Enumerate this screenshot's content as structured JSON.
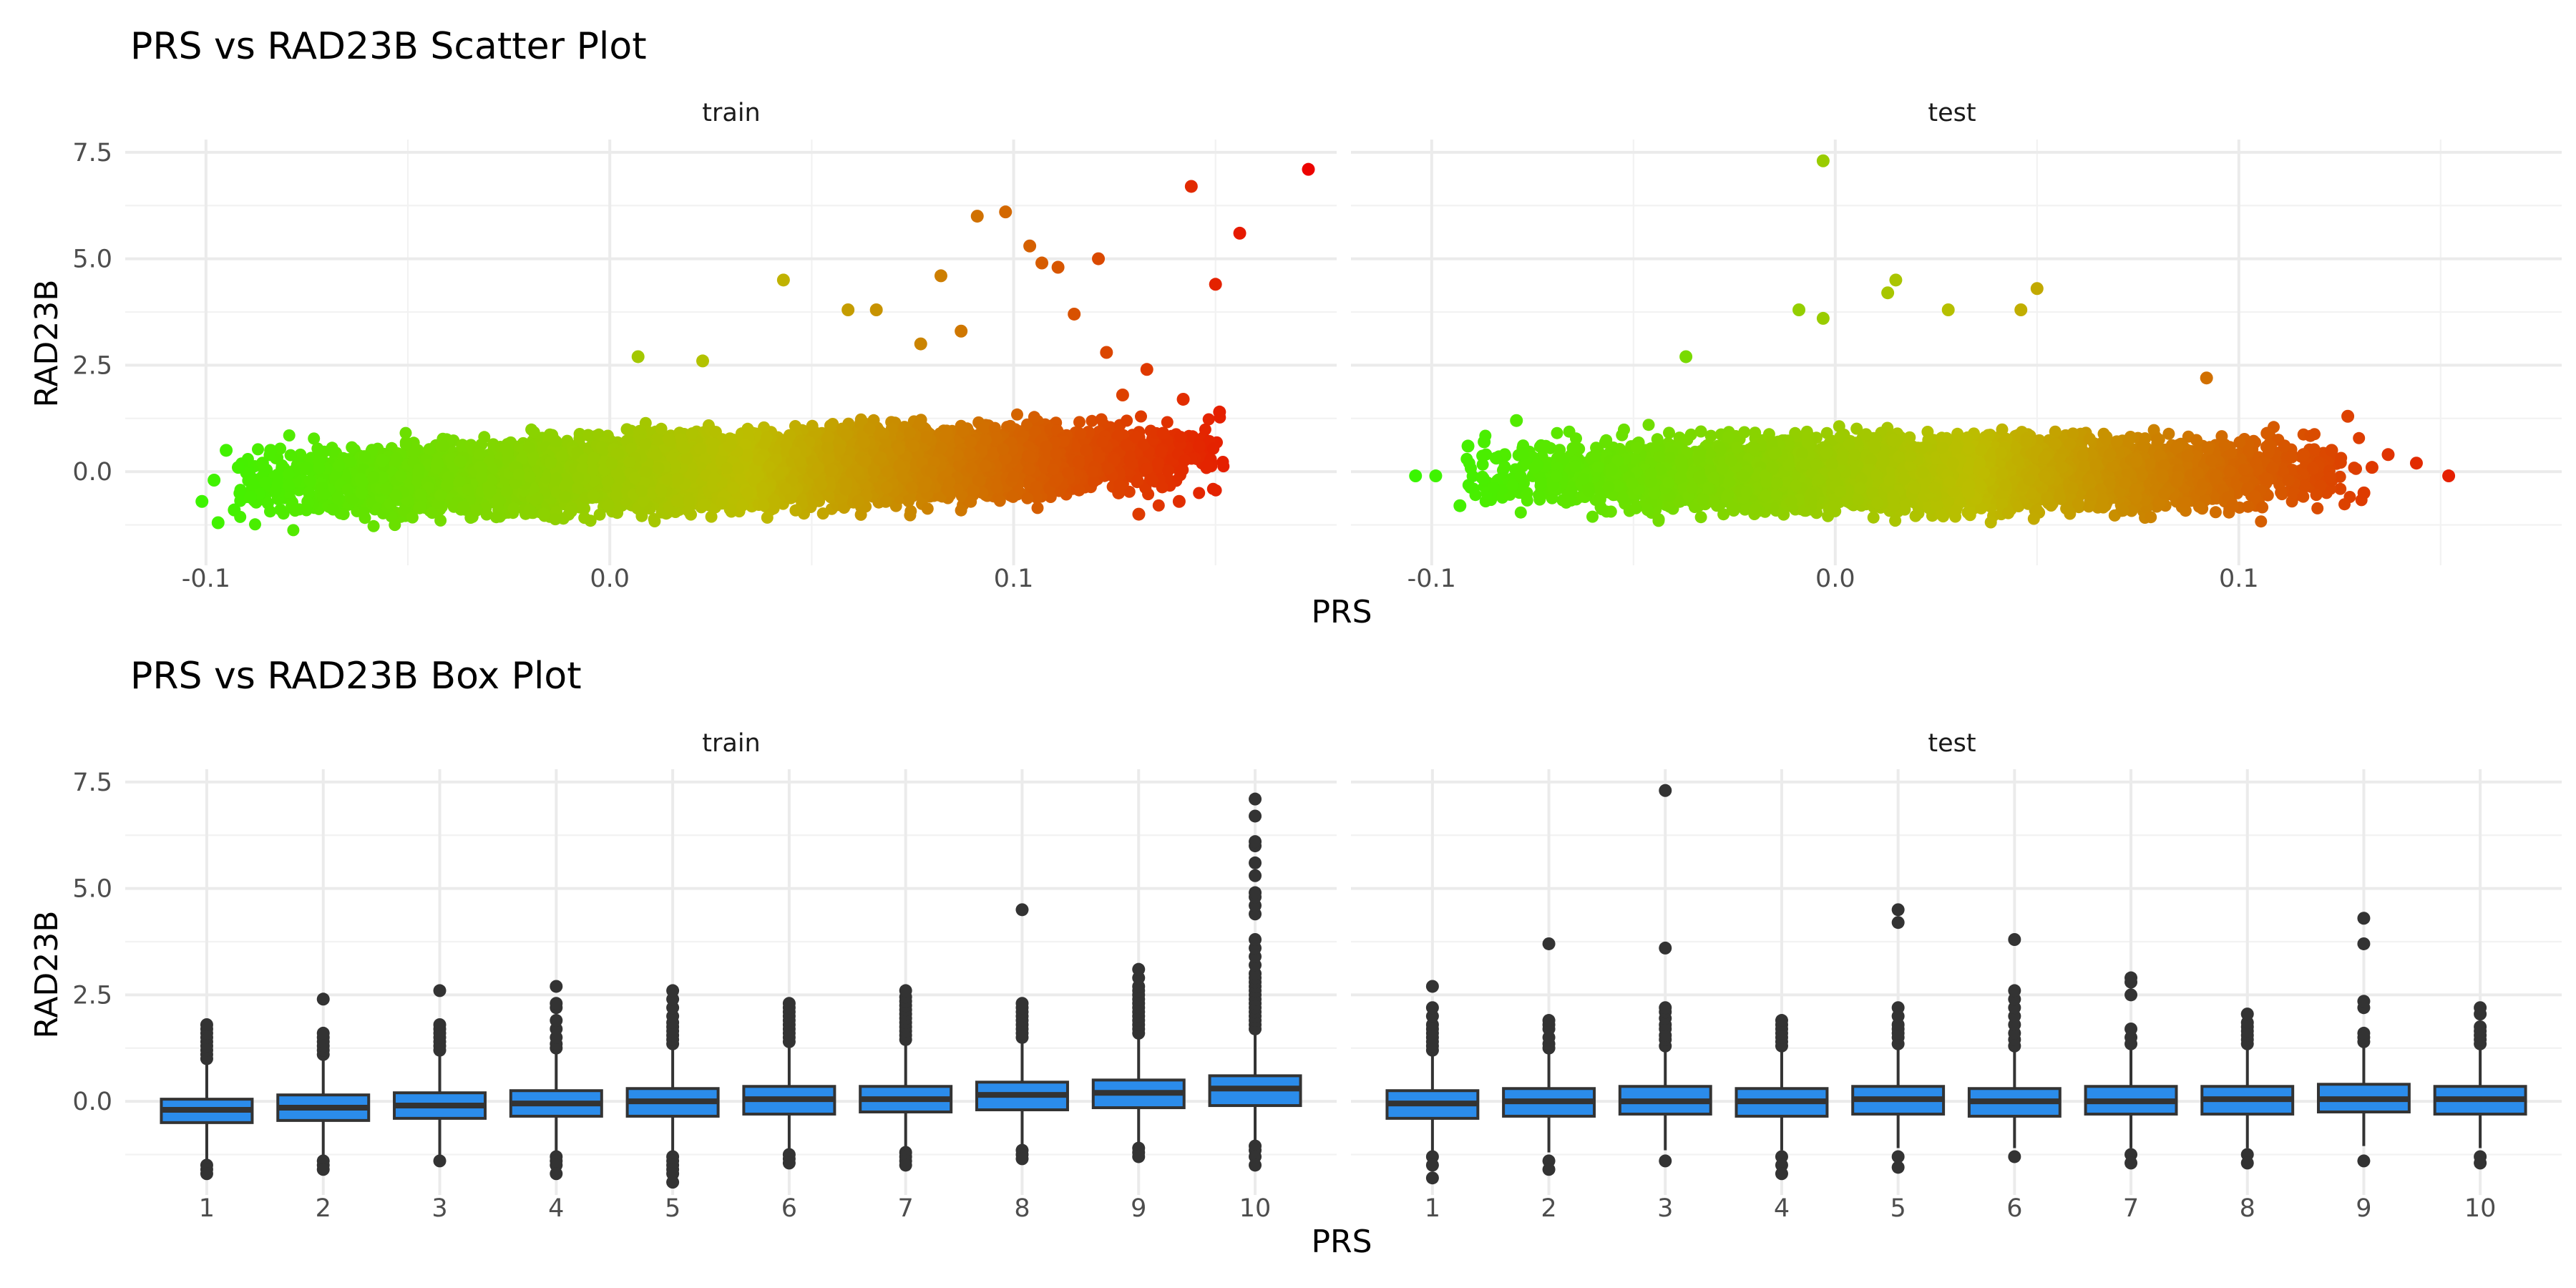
{
  "colors": {
    "gradient_low": "#39F500",
    "gradient_mid": "#BDBD00",
    "gradient_high": "#ED0000",
    "box_fill": "#2B8CEB",
    "box_line": "#333333",
    "outlier": "#333333",
    "grid": "#EBEBEB"
  },
  "chart_data": [
    {
      "type": "scatter",
      "title": "PRS vs RAD23B Scatter Plot",
      "xlabel": "PRS",
      "ylabel": "RAD23B",
      "xlim": [
        -0.12,
        0.18
      ],
      "ylim": [
        -2.2,
        7.8
      ],
      "x_ticks": [
        -0.1,
        0.0,
        0.1
      ],
      "x_tick_labels": [
        "-0.1",
        "0.0",
        "0.1"
      ],
      "y_ticks": [
        0.0,
        2.5,
        5.0,
        7.5
      ],
      "y_tick_labels": [
        "0.0",
        "2.5",
        "5.0",
        "7.5"
      ],
      "grid": true,
      "color_encoding": "continuous gradient by PRS: green (low) to red (high)",
      "panels": [
        {
          "label": "train",
          "approx_points": 9000,
          "bulk_prs_range": [
            -0.08,
            0.14
          ],
          "points": [
            {
              "x": -0.101,
              "y": -0.7
            },
            {
              "x": -0.098,
              "y": -0.2
            },
            {
              "x": -0.097,
              "y": -1.2
            },
            {
              "x": -0.095,
              "y": 0.5
            },
            {
              "x": -0.093,
              "y": -0.9
            },
            {
              "x": -0.092,
              "y": 0.1
            },
            {
              "x": -0.089,
              "y": -0.6
            },
            {
              "x": -0.086,
              "y": 0.2
            },
            {
              "x": -0.084,
              "y": 0.5
            },
            {
              "x": 0.007,
              "y": 2.7
            },
            {
              "x": 0.023,
              "y": 2.6
            },
            {
              "x": 0.043,
              "y": 4.5
            },
            {
              "x": 0.059,
              "y": 3.8
            },
            {
              "x": 0.066,
              "y": 3.8
            },
            {
              "x": 0.077,
              "y": 3.0
            },
            {
              "x": 0.082,
              "y": 4.6
            },
            {
              "x": 0.087,
              "y": 3.3
            },
            {
              "x": 0.091,
              "y": 6.0
            },
            {
              "x": 0.098,
              "y": 6.1
            },
            {
              "x": 0.104,
              "y": 5.3
            },
            {
              "x": 0.107,
              "y": 4.9
            },
            {
              "x": 0.111,
              "y": 4.8
            },
            {
              "x": 0.115,
              "y": 3.7
            },
            {
              "x": 0.121,
              "y": 5.0
            },
            {
              "x": 0.123,
              "y": 2.8
            },
            {
              "x": 0.127,
              "y": 1.8
            },
            {
              "x": 0.133,
              "y": 2.4
            },
            {
              "x": 0.137,
              "y": 0.9
            },
            {
              "x": 0.142,
              "y": 1.7
            },
            {
              "x": 0.144,
              "y": 6.7
            },
            {
              "x": 0.146,
              "y": 0.6
            },
            {
              "x": 0.151,
              "y": 1.4
            },
            {
              "x": 0.15,
              "y": 4.4
            },
            {
              "x": 0.156,
              "y": 5.6
            },
            {
              "x": 0.173,
              "y": 7.1
            },
            {
              "x": 0.131,
              "y": -1.0
            },
            {
              "x": 0.141,
              "y": -0.7
            },
            {
              "x": 0.126,
              "y": -0.5
            }
          ]
        },
        {
          "label": "test",
          "approx_points": 6000,
          "bulk_prs_range": [
            -0.08,
            0.12
          ],
          "points": [
            {
              "x": -0.104,
              "y": -0.1
            },
            {
              "x": -0.099,
              "y": -0.1
            },
            {
              "x": -0.093,
              "y": -0.8
            },
            {
              "x": -0.091,
              "y": 0.6
            },
            {
              "x": -0.087,
              "y": 0.7
            },
            {
              "x": -0.079,
              "y": 1.2
            },
            {
              "x": -0.037,
              "y": 2.7
            },
            {
              "x": -0.003,
              "y": 7.3
            },
            {
              "x": -0.009,
              "y": 3.8
            },
            {
              "x": -0.003,
              "y": 3.6
            },
            {
              "x": 0.013,
              "y": 4.2
            },
            {
              "x": 0.015,
              "y": 4.5
            },
            {
              "x": 0.028,
              "y": 3.8
            },
            {
              "x": 0.046,
              "y": 3.8
            },
            {
              "x": 0.05,
              "y": 4.3
            },
            {
              "x": 0.092,
              "y": 2.2
            },
            {
              "x": 0.107,
              "y": 0.9
            },
            {
              "x": 0.116,
              "y": 0.4
            },
            {
              "x": 0.123,
              "y": 0.5
            },
            {
              "x": 0.127,
              "y": 1.3
            },
            {
              "x": 0.131,
              "y": -0.5
            },
            {
              "x": 0.133,
              "y": 0.1
            },
            {
              "x": 0.137,
              "y": 0.4
            },
            {
              "x": 0.144,
              "y": 0.2
            },
            {
              "x": 0.152,
              "y": -0.1
            }
          ]
        }
      ]
    },
    {
      "type": "box",
      "title": "PRS vs RAD23B Box Plot",
      "xlabel": "PRS",
      "ylabel": "RAD23B",
      "categories": [
        "1",
        "2",
        "3",
        "4",
        "5",
        "6",
        "7",
        "8",
        "9",
        "10"
      ],
      "ylim": [
        -2.2,
        7.8
      ],
      "y_ticks": [
        0.0,
        2.5,
        5.0,
        7.5
      ],
      "y_tick_labels": [
        "0.0",
        "2.5",
        "5.0",
        "7.5"
      ],
      "grid": true,
      "panels": [
        {
          "label": "train",
          "boxes": [
            {
              "q1": -0.5,
              "median": -0.2,
              "q3": 0.05,
              "whisker_low": -1.4,
              "whisker_high": 0.9,
              "outliers": [
                1.0,
                1.1,
                1.2,
                1.3,
                1.4,
                1.5,
                1.6,
                1.7,
                1.8,
                -1.5,
                -1.6,
                -1.7
              ]
            },
            {
              "q1": -0.45,
              "median": -0.15,
              "q3": 0.15,
              "whisker_low": -1.3,
              "whisker_high": 1.0,
              "outliers": [
                1.1,
                1.2,
                1.3,
                1.4,
                1.5,
                1.6,
                2.4,
                -1.4,
                -1.5,
                -1.6
              ]
            },
            {
              "q1": -0.4,
              "median": -0.1,
              "q3": 0.2,
              "whisker_low": -1.25,
              "whisker_high": 1.1,
              "outliers": [
                1.2,
                1.3,
                1.4,
                1.5,
                1.6,
                1.7,
                1.8,
                2.6,
                -1.4
              ]
            },
            {
              "q1": -0.35,
              "median": -0.05,
              "q3": 0.25,
              "whisker_low": -1.2,
              "whisker_high": 1.15,
              "outliers": [
                1.25,
                1.35,
                1.5,
                1.7,
                1.9,
                2.2,
                2.3,
                2.7,
                -1.3,
                -1.4,
                -1.5,
                -1.7
              ]
            },
            {
              "q1": -0.35,
              "median": 0.0,
              "q3": 0.3,
              "whisker_low": -1.2,
              "whisker_high": 1.25,
              "outliers": [
                1.35,
                1.45,
                1.55,
                1.65,
                1.75,
                1.85,
                2.0,
                2.2,
                2.4,
                2.6,
                -1.3,
                -1.4,
                -1.5,
                -1.6,
                -1.7,
                -1.9
              ]
            },
            {
              "q1": -0.3,
              "median": 0.05,
              "q3": 0.35,
              "whisker_low": -1.15,
              "whisker_high": 1.3,
              "outliers": [
                1.4,
                1.5,
                1.6,
                1.7,
                1.8,
                1.9,
                2.0,
                2.1,
                2.2,
                2.3,
                -1.25,
                -1.35,
                -1.45
              ]
            },
            {
              "q1": -0.25,
              "median": 0.05,
              "q3": 0.35,
              "whisker_low": -1.1,
              "whisker_high": 1.35,
              "outliers": [
                1.45,
                1.55,
                1.65,
                1.75,
                1.85,
                1.95,
                2.05,
                2.15,
                2.25,
                2.35,
                2.45,
                2.6,
                -1.2,
                -1.3,
                -1.4,
                -1.5
              ]
            },
            {
              "q1": -0.2,
              "median": 0.15,
              "q3": 0.45,
              "whisker_low": -1.05,
              "whisker_high": 1.4,
              "outliers": [
                1.5,
                1.6,
                1.7,
                1.8,
                1.9,
                2.0,
                2.1,
                2.2,
                2.3,
                4.5,
                -1.15,
                -1.25,
                -1.35
              ]
            },
            {
              "q1": -0.15,
              "median": 0.2,
              "q3": 0.5,
              "whisker_low": -1.0,
              "whisker_high": 1.5,
              "outliers": [
                1.6,
                1.7,
                1.8,
                1.9,
                2.0,
                2.1,
                2.2,
                2.3,
                2.4,
                2.5,
                2.6,
                2.7,
                2.9,
                3.1,
                -1.1,
                -1.2,
                -1.3
              ]
            },
            {
              "q1": -0.1,
              "median": 0.3,
              "q3": 0.6,
              "whisker_low": -0.95,
              "whisker_high": 1.6,
              "outliers": [
                1.7,
                1.8,
                1.9,
                2.0,
                2.1,
                2.2,
                2.3,
                2.4,
                2.5,
                2.6,
                2.7,
                2.8,
                2.9,
                3.0,
                3.2,
                3.4,
                3.6,
                3.8,
                4.4,
                4.6,
                4.8,
                4.9,
                5.3,
                5.6,
                6.0,
                6.1,
                6.7,
                7.1,
                -1.05,
                -1.15,
                -1.3,
                -1.5
              ]
            }
          ]
        },
        {
          "label": "test",
          "boxes": [
            {
              "q1": -0.4,
              "median": -0.05,
              "q3": 0.25,
              "whisker_low": -1.2,
              "whisker_high": 1.1,
              "outliers": [
                1.2,
                1.3,
                1.4,
                1.5,
                1.6,
                1.7,
                1.8,
                2.0,
                2.2,
                2.7,
                -1.3,
                -1.5,
                -1.8
              ]
            },
            {
              "q1": -0.35,
              "median": 0.0,
              "q3": 0.3,
              "whisker_low": -1.2,
              "whisker_high": 1.15,
              "outliers": [
                1.25,
                1.35,
                1.5,
                1.7,
                1.8,
                1.9,
                3.7,
                -1.4,
                -1.6
              ]
            },
            {
              "q1": -0.3,
              "median": 0.0,
              "q3": 0.35,
              "whisker_low": -1.15,
              "whisker_high": 1.2,
              "outliers": [
                1.3,
                1.45,
                1.55,
                1.7,
                1.8,
                1.95,
                2.1,
                2.2,
                3.6,
                7.3,
                -1.4
              ]
            },
            {
              "q1": -0.35,
              "median": 0.0,
              "q3": 0.3,
              "whisker_low": -1.15,
              "whisker_high": 1.2,
              "outliers": [
                1.3,
                1.4,
                1.5,
                1.6,
                1.7,
                1.8,
                1.9,
                -1.3,
                -1.5,
                -1.7
              ]
            },
            {
              "q1": -0.3,
              "median": 0.05,
              "q3": 0.35,
              "whisker_low": -1.1,
              "whisker_high": 1.25,
              "outliers": [
                1.35,
                1.5,
                1.6,
                1.7,
                1.8,
                2.0,
                2.2,
                4.2,
                4.5,
                -1.3,
                -1.55
              ]
            },
            {
              "q1": -0.35,
              "median": 0.0,
              "q3": 0.3,
              "whisker_low": -1.1,
              "whisker_high": 1.2,
              "outliers": [
                1.3,
                1.45,
                1.6,
                1.8,
                2.0,
                2.2,
                2.4,
                2.6,
                3.8,
                -1.3
              ]
            },
            {
              "q1": -0.3,
              "median": 0.0,
              "q3": 0.35,
              "whisker_low": -1.1,
              "whisker_high": 1.25,
              "outliers": [
                1.35,
                1.5,
                1.7,
                2.5,
                2.8,
                2.9,
                -1.25,
                -1.45
              ]
            },
            {
              "q1": -0.3,
              "median": 0.05,
              "q3": 0.35,
              "whisker_low": -1.1,
              "whisker_high": 1.25,
              "outliers": [
                1.35,
                1.45,
                1.55,
                1.65,
                1.75,
                1.85,
                2.05,
                -1.25,
                -1.45
              ]
            },
            {
              "q1": -0.25,
              "median": 0.05,
              "q3": 0.4,
              "whisker_low": -1.05,
              "whisker_high": 1.3,
              "outliers": [
                1.4,
                1.5,
                1.6,
                2.2,
                2.35,
                3.7,
                4.3,
                -1.4
              ]
            },
            {
              "q1": -0.3,
              "median": 0.05,
              "q3": 0.35,
              "whisker_low": -1.1,
              "whisker_high": 1.25,
              "outliers": [
                1.35,
                1.45,
                1.55,
                1.65,
                1.75,
                2.05,
                2.2,
                -1.3,
                -1.45
              ]
            }
          ]
        }
      ]
    }
  ]
}
